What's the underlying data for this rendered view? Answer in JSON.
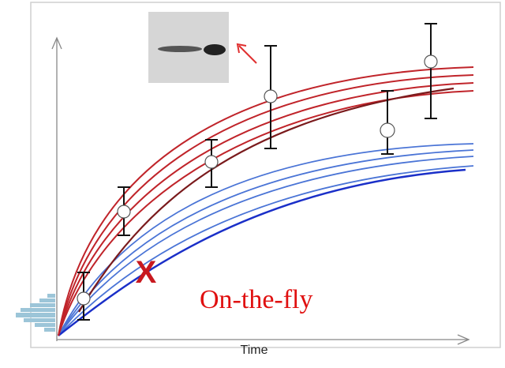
{
  "axis": {
    "x_label": "Time"
  },
  "annotations": {
    "marker": "X",
    "label": "On-the-fly"
  }
}
